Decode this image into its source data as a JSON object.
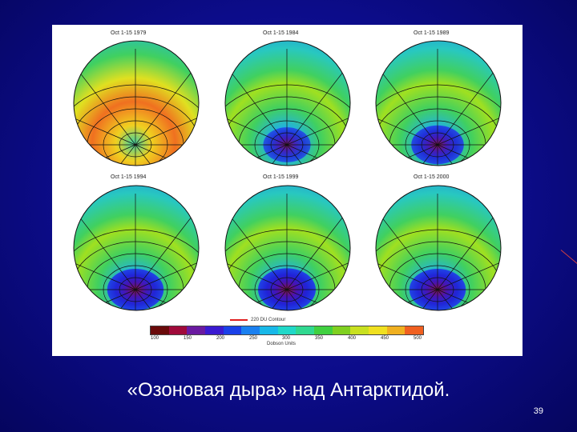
{
  "slide": {
    "caption": "«Озоновая дыра» над Антарктидой.",
    "slide_number": "39"
  },
  "figure": {
    "panels": [
      {
        "title": "Oct 1-15 1979",
        "hole_level": 0.0
      },
      {
        "title": "Oct 1-15 1984",
        "hole_level": 0.55
      },
      {
        "title": "Oct 1-15 1989",
        "hole_level": 0.75
      },
      {
        "title": "Oct 1-15 1994",
        "hole_level": 0.9
      },
      {
        "title": "Oct 1-15 1999",
        "hole_level": 0.95
      },
      {
        "title": "Oct 1-15 2000",
        "hole_level": 0.9
      }
    ],
    "contour_legend": "220 DU Contour",
    "colorbar_ticks": [
      "100",
      "150",
      "200",
      "250",
      "300",
      "350",
      "400",
      "450",
      "500"
    ],
    "colorbar_units": "Dobson Units",
    "colorbar_colors": [
      "#6a0a0a",
      "#a00a3a",
      "#6a1aa0",
      "#3a1ad0",
      "#1a40e8",
      "#1a80f0",
      "#18b8e8",
      "#20d8c8",
      "#30d890",
      "#40d040",
      "#80d020",
      "#c8e020",
      "#f0e020",
      "#f0b020",
      "#f06020"
    ]
  }
}
